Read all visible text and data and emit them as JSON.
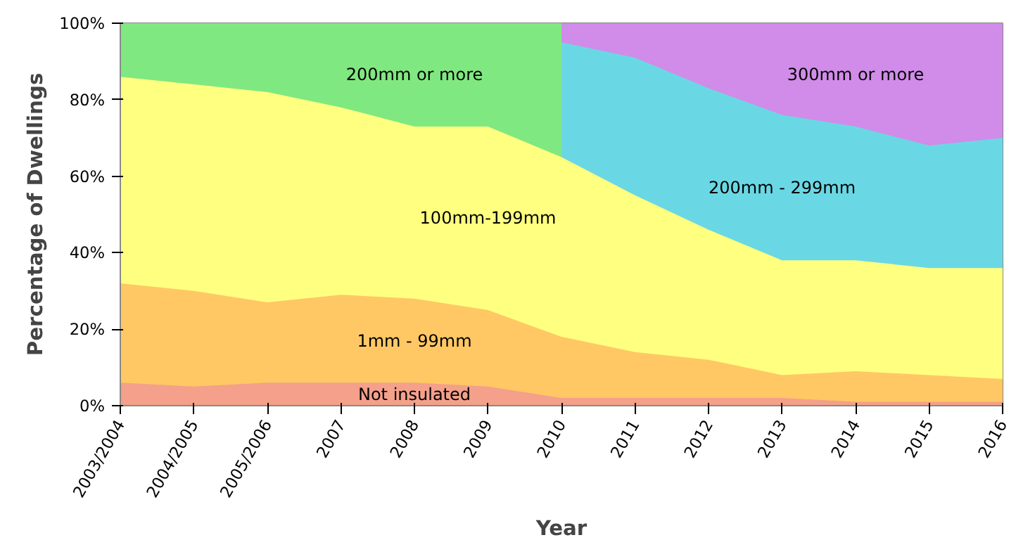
{
  "chart_data": {
    "type": "area",
    "xlabel": "Year",
    "ylabel": "Percentage of Dwellings",
    "categories": [
      "2003/2004",
      "2004/2005",
      "2005/2006",
      "2007",
      "2008",
      "2009",
      "2010",
      "2011",
      "2012",
      "2013",
      "2014",
      "2015",
      "2016"
    ],
    "series": [
      {
        "name": "300mm or more",
        "color": "#d08ce8",
        "values": [
          null,
          null,
          null,
          null,
          null,
          null,
          100,
          100,
          100,
          100,
          100,
          100,
          100
        ]
      },
      {
        "name": "200mm or more",
        "color": "#80e880",
        "values": [
          100,
          100,
          100,
          100,
          100,
          100,
          100,
          null,
          null,
          null,
          null,
          null,
          null
        ]
      },
      {
        "name": "200mm - 299mm",
        "color": "#6ad8e4",
        "values": [
          null,
          null,
          null,
          null,
          null,
          null,
          95,
          91,
          83,
          76,
          73,
          68,
          70
        ]
      },
      {
        "name": "100mm-199mm",
        "color": "#ffff80",
        "values": [
          86,
          84,
          82,
          78,
          73,
          73,
          65,
          55,
          46,
          38,
          38,
          36,
          36
        ]
      },
      {
        "name": "1mm - 99mm",
        "color": "#ffc864",
        "values": [
          32,
          30,
          27,
          29,
          28,
          25,
          18,
          14,
          12,
          8,
          9,
          8,
          7
        ]
      },
      {
        "name": "Not insulated",
        "color": "#f4a08a",
        "values": [
          6,
          5,
          6,
          6,
          6,
          5,
          2,
          2,
          2,
          2,
          1,
          1,
          1
        ]
      }
    ],
    "ylim": [
      0,
      100
    ],
    "yticks": [
      {
        "value": 0,
        "label": "0%"
      },
      {
        "value": 20,
        "label": "20%"
      },
      {
        "value": 40,
        "label": "40%"
      },
      {
        "value": 60,
        "label": "60%"
      },
      {
        "value": 80,
        "label": "80%"
      },
      {
        "value": 100,
        "label": "100%"
      }
    ],
    "tick_labels": true
  }
}
